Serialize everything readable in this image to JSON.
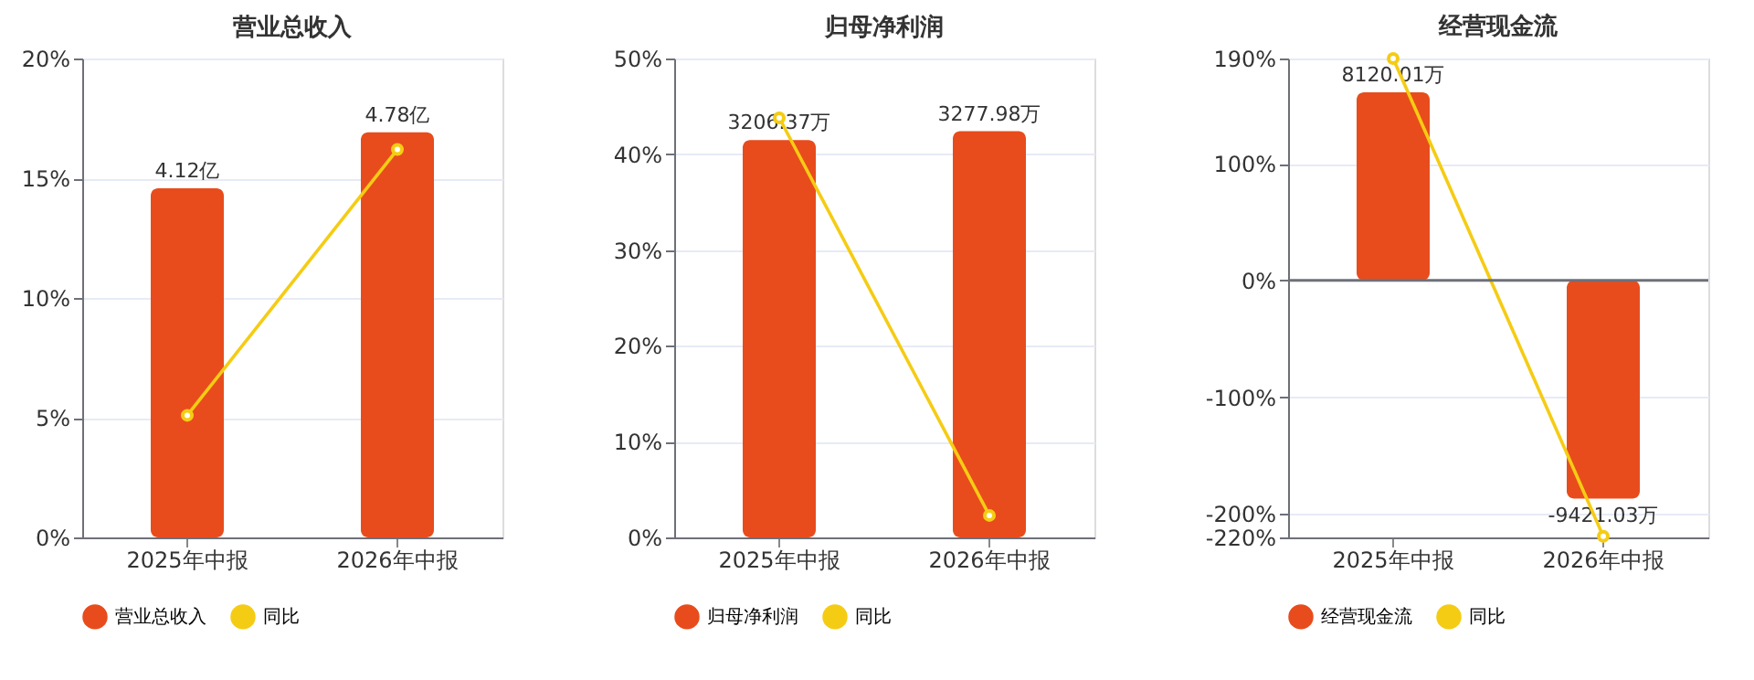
{
  "chart_data": [
    {
      "type": "bar",
      "title": "营业总收入",
      "categories": [
        "2025年中报",
        "2026年中报"
      ],
      "ylim": [
        0,
        20
      ],
      "yticks": [
        {
          "value": 0,
          "label": "0%"
        },
        {
          "value": 5,
          "label": "5%"
        },
        {
          "value": 10,
          "label": "10%"
        },
        {
          "value": 15,
          "label": "15%"
        },
        {
          "value": 20,
          "label": "20%"
        }
      ],
      "y2lim": [
        0,
        5.65
      ],
      "grid": "y",
      "legend": "bottom",
      "series": [
        {
          "name": "营业总收入",
          "axis": "y2",
          "color": "#e84c1c",
          "values": [
            4.12,
            4.78
          ],
          "value_labels": [
            "4.12亿",
            "4.78亿"
          ]
        },
        {
          "name": "同比",
          "type": "line",
          "axis": "y",
          "color": "#f5cc14",
          "marker": "circle",
          "values": [
            5.1,
            16.2
          ]
        }
      ]
    },
    {
      "type": "bar",
      "title": "归母净利润",
      "categories": [
        "2025年中报",
        "2026年中报"
      ],
      "ylim": [
        0,
        50
      ],
      "yticks": [
        {
          "value": 0,
          "label": "0%"
        },
        {
          "value": 10,
          "label": "10%"
        },
        {
          "value": 20,
          "label": "20%"
        },
        {
          "value": 30,
          "label": "30%"
        },
        {
          "value": 40,
          "label": "40%"
        },
        {
          "value": 50,
          "label": "50%"
        }
      ],
      "y2lim": [
        0,
        3865
      ],
      "grid": "y",
      "legend": "bottom",
      "series": [
        {
          "name": "归母净利润",
          "axis": "y2",
          "color": "#e84c1c",
          "values": [
            3206.37,
            3277.98
          ],
          "value_labels": [
            "3206.37万",
            "3277.98万"
          ]
        },
        {
          "name": "同比",
          "type": "line",
          "axis": "y",
          "color": "#f5cc14",
          "marker": "circle",
          "values": [
            43.8,
            2.3
          ]
        }
      ]
    },
    {
      "type": "bar",
      "title": "经营现金流",
      "categories": [
        "2025年中报",
        "2026年中报"
      ],
      "ylim": [
        -220,
        190
      ],
      "yticks": [
        {
          "value": -220,
          "label": "-220%"
        },
        {
          "value": -200,
          "label": "-200%"
        },
        {
          "value": -100,
          "label": "-100%"
        },
        {
          "value": 0,
          "label": "0%"
        },
        {
          "value": 100,
          "label": "100%"
        },
        {
          "value": 190,
          "label": "190%"
        }
      ],
      "y2lim": [
        -11100,
        9585
      ],
      "grid": "y",
      "legend": "bottom",
      "ref_lines": [
        {
          "axis": "y",
          "value": 0,
          "color": "#6e7079"
        }
      ],
      "series": [
        {
          "name": "经营现金流",
          "axis": "y2",
          "color": "#e84c1c",
          "values": [
            8120.01,
            -9421.03
          ],
          "value_labels": [
            "8120.01万",
            "-9421.03万"
          ]
        },
        {
          "name": "同比",
          "type": "line",
          "axis": "y",
          "color": "#f5cc14",
          "marker": "circle",
          "values": [
            190,
            -219
          ]
        }
      ]
    }
  ]
}
